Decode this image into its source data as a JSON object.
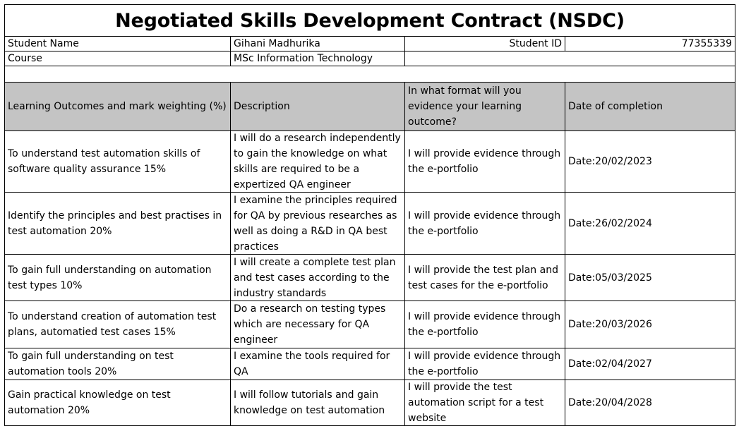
{
  "title": "Negotiated Skills Development Contract (NSDC)",
  "student": {
    "name_label": "Student Name",
    "name_value": "Gihani Madhurika",
    "id_label": "Student ID",
    "id_value": "77355339",
    "course_label": "Course",
    "course_value": "MSc Information Technology"
  },
  "table": {
    "headers": [
      "Learning Outcomes and mark weighting (%)",
      "Description",
      "In what format will you evidence your learning outcome?",
      "Date of completion"
    ],
    "rows": [
      [
        "To understand test automation skills of software quality assurance 15%",
        "I will do a research independently to gain the knowledge on what skills are required to be a expertized QA engineer",
        "I will provide evidence through the e-portfolio",
        "Date:20/02/2023"
      ],
      [
        "Identify the principles and best practises in test automation 20%",
        "I examine the principles required for QA by previous researches as well as doing a R&D in QA best practices",
        "I will provide evidence through the e-portfolio",
        "Date:26/02/2024"
      ],
      [
        "To gain full understanding on automation test types  10%",
        "I will create a complete test plan and test cases according to the industry standards",
        "I will provide the test plan and test cases for the e-portfolio",
        "Date:05/03/2025"
      ],
      [
        "To understand creation of automation test plans, automatied test cases 15%",
        "Do a research on testing types which are necessary for QA engineer",
        "I will provide evidence through the e-portfolio",
        "Date:20/03/2026"
      ],
      [
        "To gain full understanding on test automation tools 20%",
        "I examine the tools required for QA",
        "I will provide evidence through the e-portfolio",
        "Date:02/04/2027"
      ],
      [
        "Gain practical knowledge on test automation 20%",
        "I will follow tutorials and gain knowledge on test automation",
        "I will provide the test automation script for a test website",
        "Date:20/04/2028"
      ]
    ]
  }
}
